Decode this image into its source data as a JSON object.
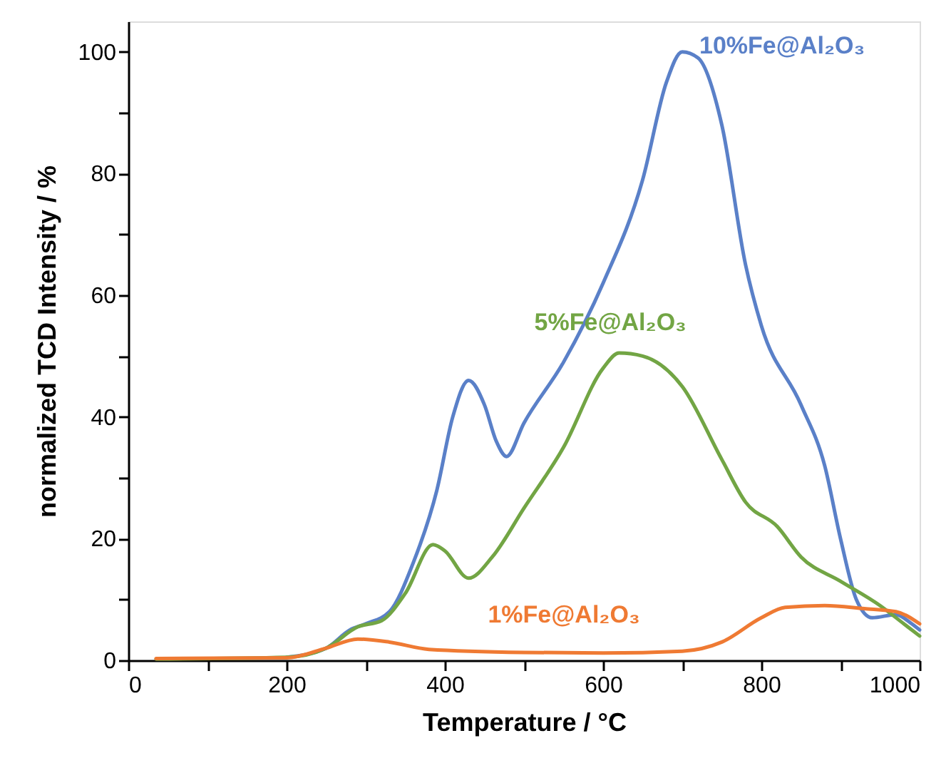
{
  "chart_data": {
    "type": "line",
    "xlabel": "Temperature / °C",
    "ylabel": "normalized TCD Intensity / %",
    "xlim": [
      0,
      1000
    ],
    "ylim": [
      0,
      105
    ],
    "xticks": [
      0,
      {
        "value": 100,
        "label": null
      },
      200,
      {
        "value": 300,
        "label": null
      },
      400,
      {
        "value": 500,
        "label": null
      },
      600,
      {
        "value": 700,
        "label": null
      },
      800,
      {
        "value": 900,
        "label": null
      },
      1000
    ],
    "yticks": [
      0,
      {
        "value": 10,
        "label": null
      },
      20,
      {
        "value": 30,
        "label": null
      },
      40,
      {
        "value": 50,
        "label": null
      },
      60,
      {
        "value": 70,
        "label": null
      },
      80,
      {
        "value": 90,
        "label": null
      },
      100
    ],
    "grid": false,
    "legend": false,
    "marker": "none",
    "line_style": "solid",
    "series": [
      {
        "name": "10%Fe@Al₂O₃",
        "color": "#5a80c8",
        "x": [
          200,
          250,
          280,
          300,
          330,
          360,
          390,
          410,
          430,
          450,
          465,
          478,
          500,
          550,
          600,
          650,
          680,
          700,
          720,
          750,
          780,
          800,
          850,
          880,
          900,
          920,
          940,
          970,
          990,
          1000
        ],
        "values": [
          0.5,
          2,
          5,
          6,
          8,
          16,
          28,
          40,
          46,
          42,
          36,
          33.5,
          39,
          49,
          62,
          79,
          95,
          100,
          99,
          88,
          65,
          55,
          42,
          32,
          20,
          10,
          7,
          7.5,
          6,
          5
        ]
      },
      {
        "name": "5%Fe@Al₂O₃",
        "color": "#72a544",
        "x": [
          35,
          200,
          250,
          290,
          320,
          350,
          385,
          400,
          430,
          460,
          500,
          550,
          600,
          620,
          650,
          700,
          750,
          780,
          820,
          850,
          900,
          950,
          980,
          1000
        ],
        "values": [
          0.2,
          0.5,
          2,
          5.5,
          6.5,
          11,
          19,
          18,
          13.5,
          17,
          25,
          35,
          48,
          50.5,
          50,
          45,
          33,
          26,
          22,
          17,
          13,
          9,
          6,
          4
        ]
      },
      {
        "name": "1%Fe@Al₂O₃",
        "color": "#ef7a33",
        "x": [
          35,
          200,
          250,
          290,
          330,
          380,
          500,
          600,
          700,
          750,
          800,
          830,
          880,
          930,
          970,
          1000
        ],
        "values": [
          0.3,
          0.4,
          2,
          3.5,
          3,
          1.8,
          1.3,
          1.2,
          1.5,
          3,
          7,
          8.7,
          9,
          8.5,
          8,
          6
        ]
      }
    ]
  }
}
